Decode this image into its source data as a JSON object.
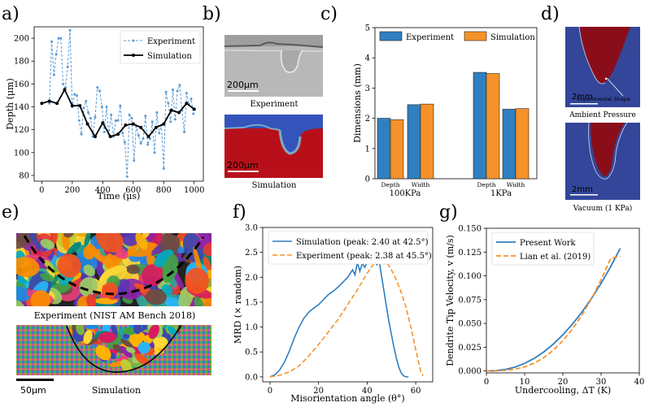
{
  "panels": {
    "a": {
      "letter": "a)"
    },
    "b": {
      "letter": "b)",
      "caption_top": "Experiment",
      "caption_bottom": "Simulation",
      "scale_top": "200μm",
      "scale_bottom": "200μm"
    },
    "c": {
      "letter": "c)"
    },
    "d": {
      "letter": "d)",
      "annotation": "Experimental Shape",
      "scale_top": "2mm",
      "scale_bottom": "2mm",
      "caption_top": "Ambient Pressure",
      "caption_bottom": "Vacuum (1 KPa)"
    },
    "e": {
      "letter": "e)",
      "caption_top": "Experiment (NIST AM Bench 2018)",
      "caption_bottom": "Simulation",
      "scale": "50μm"
    },
    "f": {
      "letter": "f)"
    },
    "g": {
      "letter": "g)"
    }
  },
  "chart_data": [
    {
      "id": "a",
      "type": "line",
      "xlabel": "Time (μs)",
      "ylabel": "Depth (μm)",
      "xlim": [
        -50,
        1060
      ],
      "ylim": [
        75,
        210
      ],
      "xticks": [
        0,
        200,
        400,
        600,
        800,
        1000
      ],
      "yticks": [
        80,
        100,
        120,
        140,
        160,
        180,
        200
      ],
      "legend": "top-right",
      "series": [
        {
          "name": "Experiment",
          "color": "#5b9bd5",
          "style": "dashed-markers",
          "x": [
            50,
            65,
            80,
            95,
            110,
            125,
            140,
            155,
            170,
            185,
            200,
            215,
            230,
            245,
            260,
            275,
            290,
            305,
            320,
            335,
            350,
            365,
            380,
            395,
            410,
            425,
            440,
            455,
            470,
            485,
            500,
            515,
            530,
            545,
            560,
            575,
            590,
            605,
            620,
            635,
            650,
            665,
            680,
            695,
            710,
            725,
            740,
            755,
            770,
            785,
            800,
            815,
            830,
            845,
            860,
            875,
            890,
            905,
            920,
            935,
            950,
            965,
            980,
            995
          ],
          "y": [
            143,
            197,
            168,
            186,
            200,
            200,
            160,
            157,
            175,
            207,
            140,
            151,
            150,
            128,
            116,
            139,
            145,
            135,
            130,
            114,
            131,
            157,
            154,
            140,
            118,
            140,
            116,
            133,
            114,
            128,
            128,
            141,
            117,
            109,
            79,
            133,
            130,
            93,
            123,
            115,
            108,
            112,
            132,
            107,
            112,
            127,
            100,
            135,
            117,
            124,
            86,
            153,
            143,
            127,
            155,
            129,
            154,
            159,
            137,
            118,
            152,
            142,
            147,
            134
          ]
        },
        {
          "name": "Simulation",
          "color": "#000000",
          "style": "solid-markers",
          "x": [
            0,
            50,
            100,
            150,
            200,
            250,
            300,
            350,
            400,
            450,
            500,
            550,
            600,
            650,
            700,
            750,
            800,
            850,
            900,
            950,
            1000
          ],
          "y": [
            143,
            145,
            143,
            155,
            141,
            141,
            125,
            114,
            126,
            114,
            116,
            124,
            125,
            122,
            114,
            122,
            125,
            137,
            135,
            143,
            138
          ]
        }
      ]
    },
    {
      "id": "c",
      "type": "bar",
      "ylabel": "Dimensions (mm)",
      "ylim": [
        0,
        5
      ],
      "yticks": [
        0,
        1,
        2,
        3,
        4,
        5
      ],
      "categories": [
        "Depth",
        "Width",
        "Depth",
        "Width"
      ],
      "groups": [
        "100KPa",
        "1KPa"
      ],
      "legend": "top",
      "series": [
        {
          "name": "Experiment",
          "color": "#2f7fc1",
          "values": [
            2.0,
            2.45,
            3.52,
            2.3
          ]
        },
        {
          "name": "Simulation",
          "color": "#f5932a",
          "values": [
            1.95,
            2.47,
            3.48,
            2.32
          ]
        }
      ]
    },
    {
      "id": "f",
      "type": "line",
      "xlabel": "Misorientation angle (θ°)",
      "ylabel": "MRD (× random)",
      "xlim": [
        -3,
        67
      ],
      "ylim": [
        -0.1,
        3.0
      ],
      "xticks": [
        0,
        20,
        40,
        60
      ],
      "yticks": [
        0.0,
        0.5,
        1.0,
        1.5,
        2.0,
        2.5,
        3.0
      ],
      "legend": "top",
      "series": [
        {
          "name": "Simulation (peak: 2.40 at 42.5°)",
          "color": "#2f7fc1",
          "style": "solid",
          "x": [
            0,
            2,
            4,
            6,
            8,
            10,
            12,
            14,
            16,
            18,
            20,
            22,
            24,
            26,
            28,
            30,
            32,
            34,
            35,
            36,
            37,
            38,
            39,
            40,
            41,
            42,
            42.5,
            43,
            44,
            45,
            46,
            47,
            48,
            49,
            50,
            51,
            52,
            53,
            54,
            55,
            56,
            57
          ],
          "y": [
            0,
            0.04,
            0.14,
            0.3,
            0.52,
            0.78,
            1.0,
            1.18,
            1.3,
            1.38,
            1.45,
            1.55,
            1.65,
            1.72,
            1.8,
            1.9,
            2.0,
            2.15,
            2.05,
            2.3,
            2.12,
            2.28,
            2.2,
            2.3,
            2.34,
            2.36,
            2.4,
            2.32,
            2.25,
            2.32,
            2.0,
            1.7,
            1.4,
            1.1,
            0.85,
            0.6,
            0.38,
            0.2,
            0.08,
            0.02,
            0,
            0
          ]
        },
        {
          "name": "Experiment (peak: 2.38 at 45.5°)",
          "color": "#f5932a",
          "style": "dashed",
          "x": [
            0,
            4,
            8,
            12,
            16,
            20,
            24,
            28,
            32,
            36,
            40,
            42,
            44,
            45.5,
            47,
            48,
            50,
            52,
            54,
            56,
            58,
            60,
            62,
            63
          ],
          "y": [
            0,
            0.03,
            0.1,
            0.22,
            0.42,
            0.65,
            0.9,
            1.15,
            1.45,
            1.75,
            2.08,
            2.22,
            2.34,
            2.38,
            2.35,
            2.3,
            2.15,
            1.95,
            1.7,
            1.4,
            1.0,
            0.55,
            0.12,
            0.02
          ]
        }
      ]
    },
    {
      "id": "g",
      "type": "line",
      "xlabel": "Undercooling, ΔT (K)",
      "ylabel": "Dendrite Tip Velocity, v (m/s)",
      "xlim": [
        0,
        40
      ],
      "ylim": [
        -0.002,
        0.15
      ],
      "xticks": [
        0,
        10,
        20,
        30,
        40
      ],
      "yticks": [
        0.0,
        0.025,
        0.05,
        0.075,
        0.1,
        0.125,
        0.15
      ],
      "ytick_labels": [
        "0.000",
        "0.025",
        "0.050",
        "0.075",
        "0.100",
        "0.125",
        "0.150"
      ],
      "legend": "top-left",
      "series": [
        {
          "name": "Present Work",
          "color": "#2f7fc1",
          "style": "solid",
          "x": [
            0,
            2.5,
            5,
            7.5,
            10,
            12.5,
            15,
            17.5,
            20,
            22.5,
            25,
            27.5,
            30,
            32.5,
            35
          ],
          "y": [
            0,
            0.0003,
            0.0016,
            0.0041,
            0.008,
            0.0133,
            0.02,
            0.0283,
            0.038,
            0.0492,
            0.062,
            0.0763,
            0.0921,
            0.1096,
            0.1288
          ]
        },
        {
          "name": "Lian et al. (2019)",
          "color": "#f5932a",
          "style": "dashed",
          "x": [
            0,
            2.5,
            5,
            7.5,
            10,
            12.5,
            15,
            17.5,
            20,
            22.5,
            25,
            27.5,
            30,
            32.5,
            35
          ],
          "y": [
            0,
            0.0001,
            0.0006,
            0.0019,
            0.0043,
            0.0082,
            0.014,
            0.0218,
            0.0318,
            0.0441,
            0.0588,
            0.076,
            0.0958,
            0.1183,
            0.1205
          ]
        }
      ]
    }
  ]
}
